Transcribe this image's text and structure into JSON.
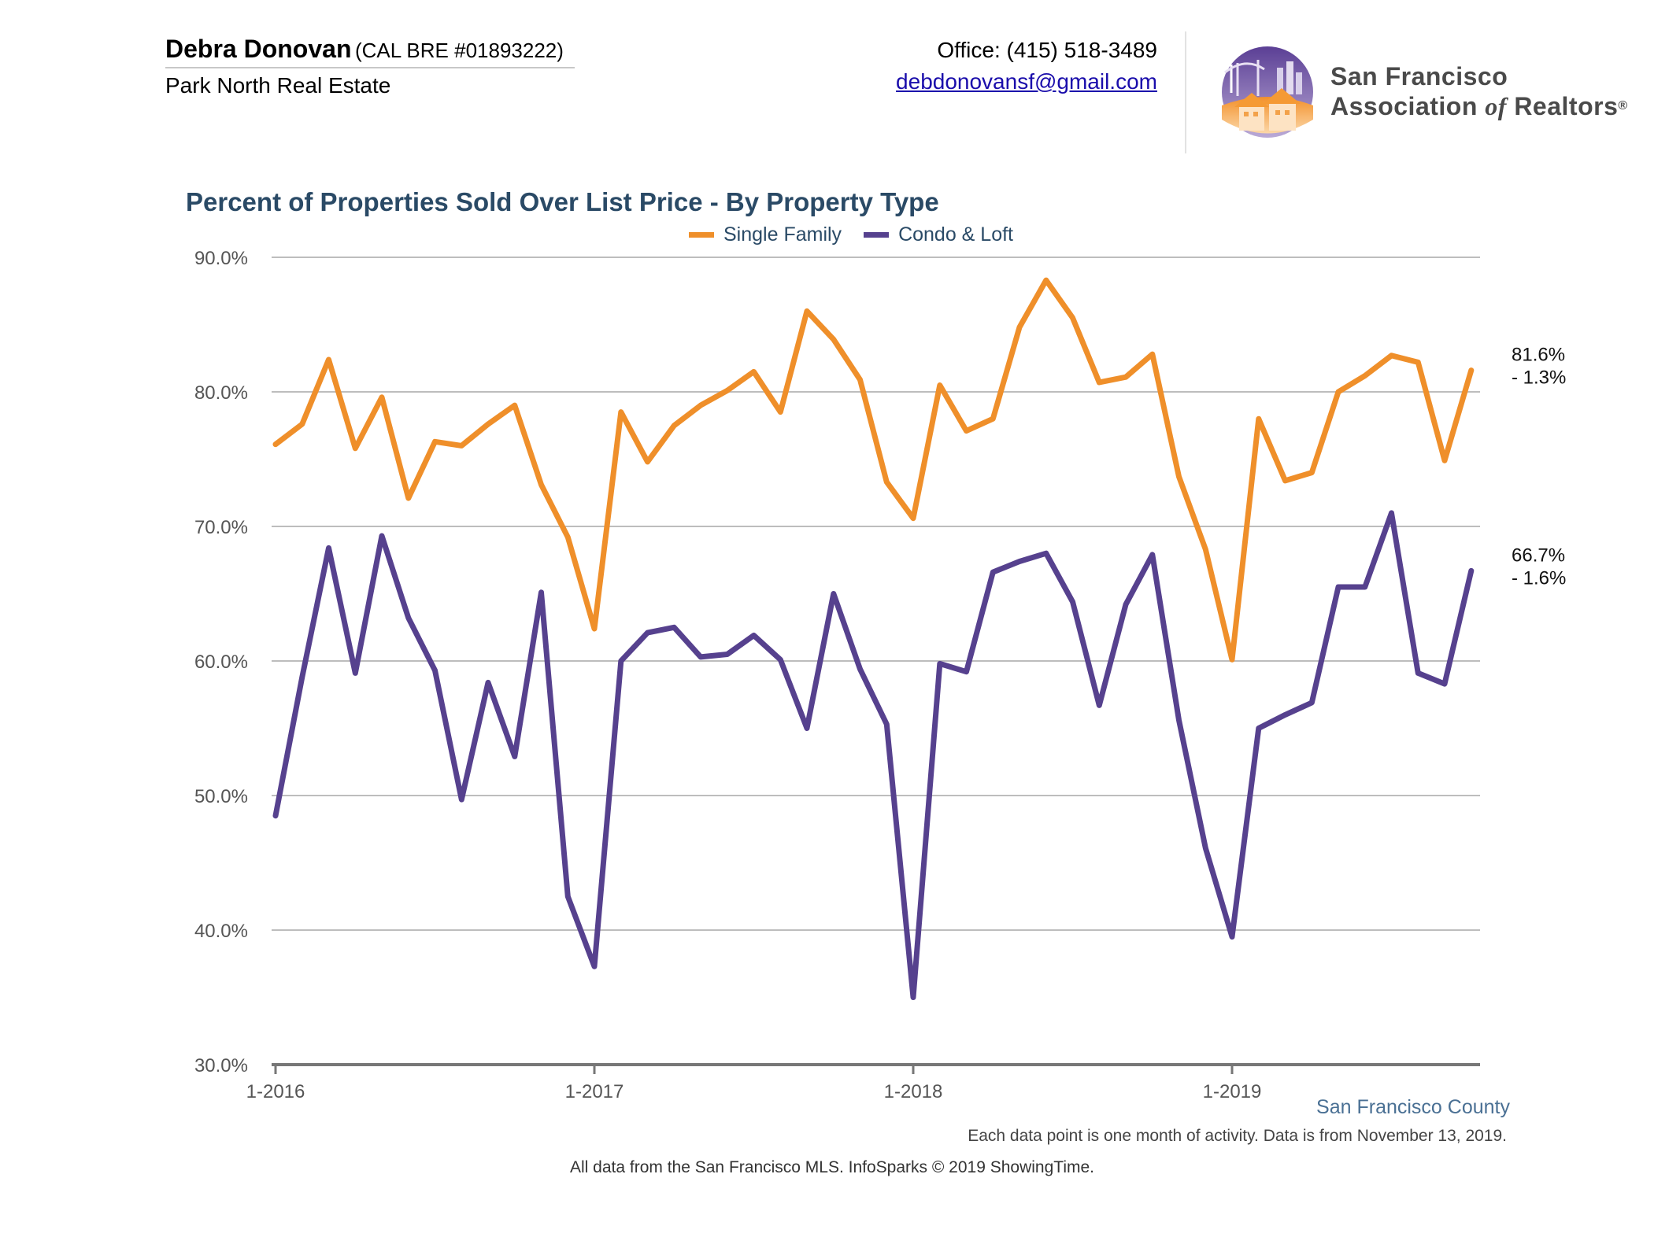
{
  "agent": {
    "name": "Debra Donovan",
    "license": "(CAL BRE #01893222)",
    "company": "Park North Real Estate"
  },
  "contact": {
    "office": "Office: (415) 518-3489",
    "email": "debdonovansf@gmail.com"
  },
  "logo": {
    "line1": "San Francisco",
    "line2_a": "Association",
    "line2_of": "of",
    "line2_b": "Realtors",
    "registered": "®"
  },
  "footer": {
    "county": "San Francisco County",
    "note": "Each data point is one month of activity. Data is from November 13, 2019.",
    "source": "All data from the San Francisco MLS. InfoSparks © 2019 ShowingTime."
  },
  "chart_data": {
    "type": "line",
    "title": "Percent of Properties Sold Over List Price - By Property Type",
    "legend_position": "top",
    "grid": true,
    "ylim": [
      30,
      90
    ],
    "y_ticks": [
      "30.0%",
      "40.0%",
      "50.0%",
      "60.0%",
      "70.0%",
      "80.0%",
      "90.0%"
    ],
    "x_ticks": [
      "1-2016",
      "1-2017",
      "1-2018",
      "1-2019"
    ],
    "x_start": "2016-01",
    "series": [
      {
        "name": "Single Family",
        "color": "#ef8f2a",
        "end_label": "81.6%",
        "end_change": "- 1.3%",
        "values": [
          76.1,
          77.6,
          82.4,
          75.8,
          79.6,
          72.1,
          76.3,
          76.0,
          77.6,
          79.0,
          73.1,
          69.2,
          62.4,
          78.5,
          74.8,
          77.5,
          79.0,
          80.1,
          81.5,
          78.5,
          86.0,
          83.9,
          80.9,
          73.3,
          70.6,
          80.5,
          77.1,
          78.0,
          84.8,
          88.3,
          85.5,
          80.7,
          81.1,
          82.8,
          73.7,
          68.3,
          60.1,
          78.0,
          73.4,
          74.0,
          80.0,
          81.2,
          82.7,
          82.2,
          74.9,
          81.6
        ]
      },
      {
        "name": "Condo & Loft",
        "color": "#56418e",
        "end_label": "66.7%",
        "end_change": "- 1.6%",
        "values": [
          48.5,
          58.8,
          68.4,
          59.1,
          69.3,
          63.2,
          59.3,
          49.7,
          58.4,
          52.9,
          65.1,
          42.5,
          37.3,
          60.0,
          62.1,
          62.5,
          60.3,
          60.5,
          61.9,
          60.1,
          55.0,
          65.0,
          59.4,
          55.3,
          35.0,
          59.8,
          59.2,
          66.6,
          67.4,
          68.0,
          64.4,
          56.7,
          64.2,
          67.9,
          55.6,
          46.1,
          39.5,
          55.0,
          56.0,
          56.9,
          65.5,
          65.5,
          71.0,
          59.1,
          58.3,
          66.7
        ]
      }
    ]
  }
}
